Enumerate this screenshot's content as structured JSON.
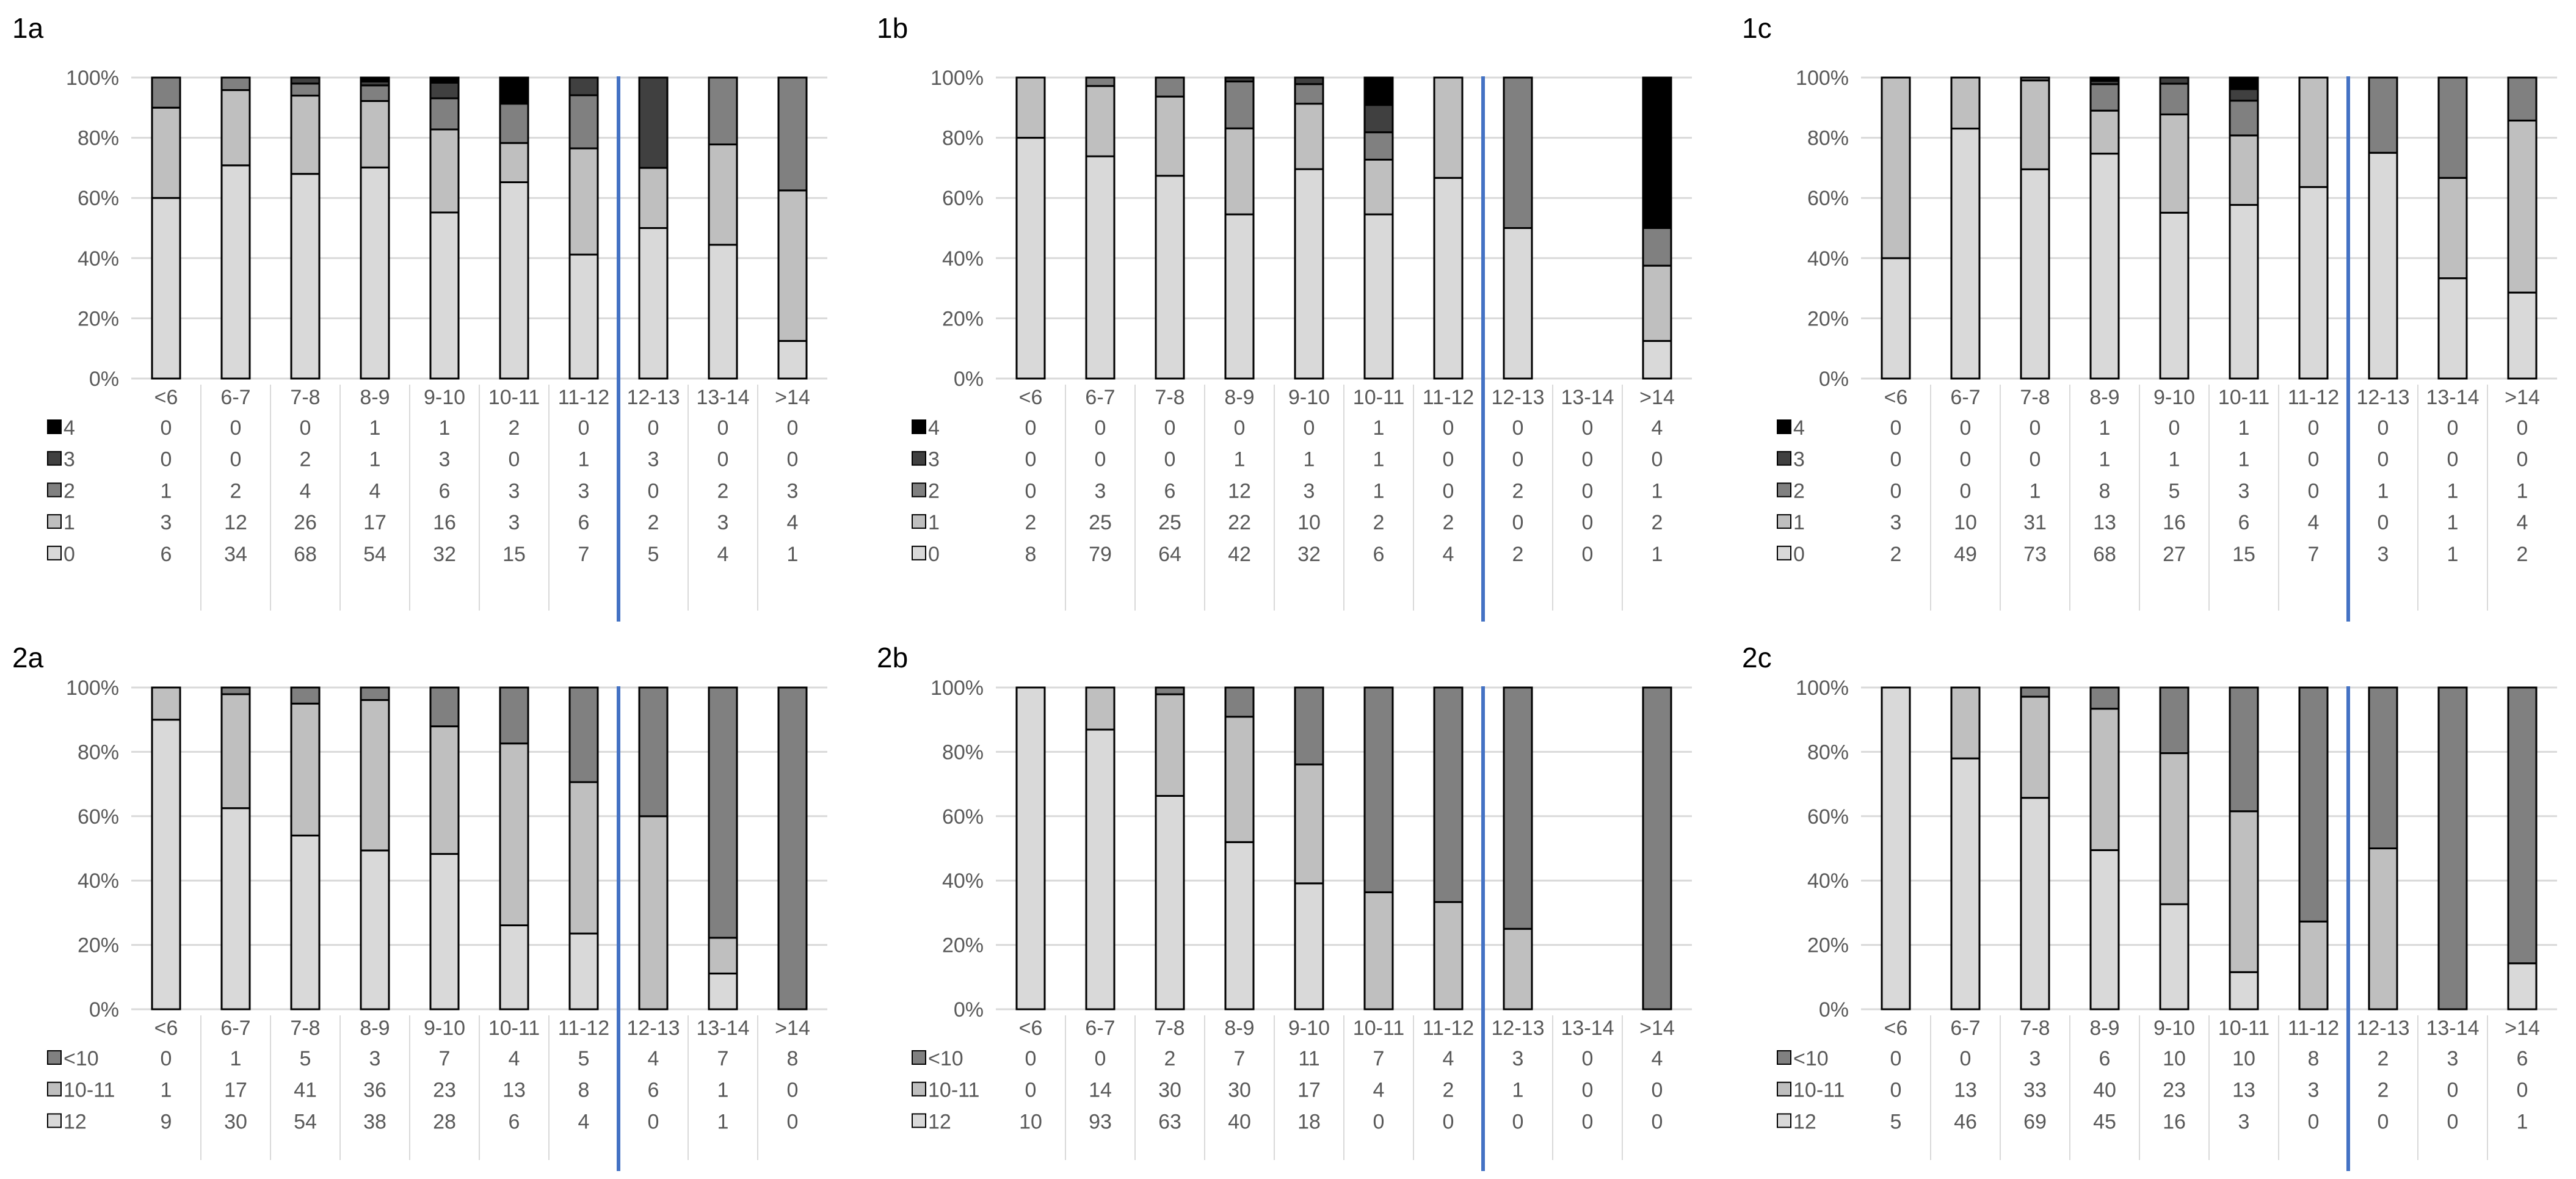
{
  "colors": {
    "level0": "#d9d9d9",
    "level1": "#bfbfbf",
    "level2": "#808080",
    "level3": "#404040",
    "level4": "#000000",
    "divider": "#4472c4",
    "grid": "#d9d9d9"
  },
  "chart_data": [
    {
      "id": "1a",
      "type": "bar",
      "stacked": "percent",
      "categories": [
        "<6",
        "6-7",
        "7-8",
        "8-9",
        "9-10",
        "10-11",
        "11-12",
        "12-13",
        "13-14",
        ">14"
      ],
      "yticks": [
        "0%",
        "20%",
        "40%",
        "60%",
        "80%",
        "100%"
      ],
      "ylim": [
        0,
        100
      ],
      "divider_after": "11-12",
      "series": [
        {
          "name": "0",
          "color": "#d9d9d9",
          "values": [
            6,
            34,
            68,
            54,
            32,
            15,
            7,
            5,
            4,
            1
          ]
        },
        {
          "name": "1",
          "color": "#bfbfbf",
          "values": [
            3,
            12,
            26,
            17,
            16,
            3,
            6,
            2,
            3,
            4
          ]
        },
        {
          "name": "2",
          "color": "#808080",
          "values": [
            1,
            2,
            4,
            4,
            6,
            3,
            3,
            0,
            2,
            3
          ]
        },
        {
          "name": "3",
          "color": "#404040",
          "values": [
            0,
            0,
            2,
            1,
            3,
            0,
            1,
            3,
            0,
            0
          ]
        },
        {
          "name": "4",
          "color": "#000000",
          "values": [
            0,
            0,
            0,
            1,
            1,
            2,
            0,
            0,
            0,
            0
          ]
        }
      ]
    },
    {
      "id": "1b",
      "type": "bar",
      "stacked": "percent",
      "categories": [
        "<6",
        "6-7",
        "7-8",
        "8-9",
        "9-10",
        "10-11",
        "11-12",
        "12-13",
        "13-14",
        ">14"
      ],
      "yticks": [
        "0%",
        "20%",
        "40%",
        "60%",
        "80%",
        "100%"
      ],
      "ylim": [
        0,
        100
      ],
      "divider_after": "11-12",
      "series": [
        {
          "name": "0",
          "color": "#d9d9d9",
          "values": [
            8,
            79,
            64,
            42,
            32,
            6,
            4,
            2,
            0,
            1
          ]
        },
        {
          "name": "1",
          "color": "#bfbfbf",
          "values": [
            2,
            25,
            25,
            22,
            10,
            2,
            2,
            0,
            0,
            2
          ]
        },
        {
          "name": "2",
          "color": "#808080",
          "values": [
            0,
            3,
            6,
            12,
            3,
            1,
            0,
            2,
            0,
            1
          ]
        },
        {
          "name": "3",
          "color": "#404040",
          "values": [
            0,
            0,
            0,
            1,
            1,
            1,
            0,
            0,
            0,
            0
          ]
        },
        {
          "name": "4",
          "color": "#000000",
          "values": [
            0,
            0,
            0,
            0,
            0,
            1,
            0,
            0,
            0,
            4
          ]
        }
      ]
    },
    {
      "id": "1c",
      "type": "bar",
      "stacked": "percent",
      "categories": [
        "<6",
        "6-7",
        "7-8",
        "8-9",
        "9-10",
        "10-11",
        "11-12",
        "12-13",
        "13-14",
        ">14"
      ],
      "yticks": [
        "0%",
        "20%",
        "40%",
        "60%",
        "80%",
        "100%"
      ],
      "ylim": [
        0,
        100
      ],
      "divider_after": "11-12",
      "series": [
        {
          "name": "0",
          "color": "#d9d9d9",
          "values": [
            2,
            49,
            73,
            68,
            27,
            15,
            7,
            3,
            1,
            2
          ]
        },
        {
          "name": "1",
          "color": "#bfbfbf",
          "values": [
            3,
            10,
            31,
            13,
            16,
            6,
            4,
            0,
            1,
            4
          ]
        },
        {
          "name": "2",
          "color": "#808080",
          "values": [
            0,
            0,
            1,
            8,
            5,
            3,
            0,
            1,
            1,
            1
          ]
        },
        {
          "name": "3",
          "color": "#404040",
          "values": [
            0,
            0,
            0,
            1,
            1,
            1,
            0,
            0,
            0,
            0
          ]
        },
        {
          "name": "4",
          "color": "#000000",
          "values": [
            0,
            0,
            0,
            1,
            0,
            1,
            0,
            0,
            0,
            0
          ]
        }
      ]
    },
    {
      "id": "2a",
      "type": "bar",
      "stacked": "percent",
      "categories": [
        "<6",
        "6-7",
        "7-8",
        "8-9",
        "9-10",
        "10-11",
        "11-12",
        "12-13",
        "13-14",
        ">14"
      ],
      "yticks": [
        "0%",
        "20%",
        "40%",
        "60%",
        "80%",
        "100%"
      ],
      "ylim": [
        0,
        100
      ],
      "divider_after": "11-12",
      "series": [
        {
          "name": "12",
          "color": "#d9d9d9",
          "values": [
            9,
            30,
            54,
            38,
            28,
            6,
            4,
            0,
            1,
            0
          ]
        },
        {
          "name": "10-11",
          "color": "#bfbfbf",
          "values": [
            1,
            17,
            41,
            36,
            23,
            13,
            8,
            6,
            1,
            0
          ]
        },
        {
          "name": "<10",
          "color": "#808080",
          "values": [
            0,
            1,
            5,
            3,
            7,
            4,
            5,
            4,
            7,
            8
          ]
        }
      ]
    },
    {
      "id": "2b",
      "type": "bar",
      "stacked": "percent",
      "categories": [
        "<6",
        "6-7",
        "7-8",
        "8-9",
        "9-10",
        "10-11",
        "11-12",
        "12-13",
        "13-14",
        ">14"
      ],
      "yticks": [
        "0%",
        "20%",
        "40%",
        "60%",
        "80%",
        "100%"
      ],
      "ylim": [
        0,
        100
      ],
      "divider_after": "11-12",
      "series": [
        {
          "name": "12",
          "color": "#d9d9d9",
          "values": [
            10,
            93,
            63,
            40,
            18,
            0,
            0,
            0,
            0,
            0
          ]
        },
        {
          "name": "10-11",
          "color": "#bfbfbf",
          "values": [
            0,
            14,
            30,
            30,
            17,
            4,
            2,
            1,
            0,
            0
          ]
        },
        {
          "name": "<10",
          "color": "#808080",
          "values": [
            0,
            0,
            2,
            7,
            11,
            7,
            4,
            3,
            0,
            4
          ]
        }
      ]
    },
    {
      "id": "2c",
      "type": "bar",
      "stacked": "percent",
      "categories": [
        "<6",
        "6-7",
        "7-8",
        "8-9",
        "9-10",
        "10-11",
        "11-12",
        "12-13",
        "13-14",
        ">14"
      ],
      "yticks": [
        "0%",
        "20%",
        "40%",
        "60%",
        "80%",
        "100%"
      ],
      "ylim": [
        0,
        100
      ],
      "divider_after": "11-12",
      "series": [
        {
          "name": "12",
          "color": "#d9d9d9",
          "values": [
            5,
            46,
            69,
            45,
            16,
            3,
            0,
            0,
            0,
            1
          ]
        },
        {
          "name": "10-11",
          "color": "#bfbfbf",
          "values": [
            0,
            13,
            33,
            40,
            23,
            13,
            3,
            2,
            0,
            0
          ]
        },
        {
          "name": "<10",
          "color": "#808080",
          "values": [
            0,
            0,
            3,
            6,
            10,
            10,
            8,
            2,
            3,
            6
          ]
        }
      ]
    }
  ]
}
